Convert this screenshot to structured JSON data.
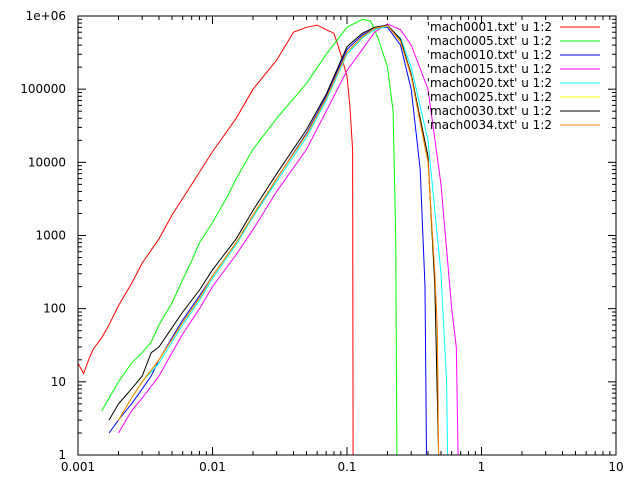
{
  "chart_data": {
    "type": "line",
    "title": "",
    "xlabel": "",
    "ylabel": "",
    "xscale": "log",
    "yscale": "log",
    "xlim": [
      0.001,
      10
    ],
    "ylim": [
      1,
      1000000
    ],
    "grid": false,
    "legend_position": "top-right",
    "x_ticks": [
      {
        "value": 0.001,
        "label": "0.001"
      },
      {
        "value": 0.01,
        "label": "0.01"
      },
      {
        "value": 0.1,
        "label": "0.1"
      },
      {
        "value": 1,
        "label": "1"
      },
      {
        "value": 10,
        "label": "10"
      }
    ],
    "y_ticks": [
      {
        "value": 1,
        "label": "1"
      },
      {
        "value": 10,
        "label": "10"
      },
      {
        "value": 100,
        "label": "100"
      },
      {
        "value": 1000,
        "label": "1000"
      },
      {
        "value": 10000,
        "label": "10000"
      },
      {
        "value": 100000,
        "label": "100000"
      },
      {
        "value": 1000000,
        "label": "1e+06"
      }
    ],
    "series": [
      {
        "name": "'mach0001.txt' u 1:2",
        "color": "#ff0000",
        "points": [
          [
            0.001,
            18
          ],
          [
            0.0011,
            13
          ],
          [
            0.0012,
            20
          ],
          [
            0.0013,
            28
          ],
          [
            0.0015,
            40
          ],
          [
            0.0017,
            60
          ],
          [
            0.002,
            110
          ],
          [
            0.0025,
            220
          ],
          [
            0.003,
            420
          ],
          [
            0.004,
            900
          ],
          [
            0.005,
            1900
          ],
          [
            0.007,
            5000
          ],
          [
            0.01,
            14000
          ],
          [
            0.015,
            40000
          ],
          [
            0.02,
            100000
          ],
          [
            0.03,
            250000
          ],
          [
            0.04,
            600000
          ],
          [
            0.05,
            700000
          ],
          [
            0.06,
            750000
          ],
          [
            0.07,
            650000
          ],
          [
            0.08,
            580000
          ],
          [
            0.09,
            300000
          ],
          [
            0.1,
            150000
          ],
          [
            0.105,
            60000
          ],
          [
            0.11,
            15000
          ],
          [
            0.111,
            1
          ]
        ]
      },
      {
        "name": "'mach0005.txt' u 1:2",
        "color": "#00ff00",
        "points": [
          [
            0.0015,
            4
          ],
          [
            0.002,
            10
          ],
          [
            0.0025,
            18
          ],
          [
            0.003,
            25
          ],
          [
            0.0035,
            35
          ],
          [
            0.004,
            60
          ],
          [
            0.005,
            120
          ],
          [
            0.006,
            250
          ],
          [
            0.007,
            450
          ],
          [
            0.008,
            800
          ],
          [
            0.01,
            1500
          ],
          [
            0.013,
            3500
          ],
          [
            0.015,
            6000
          ],
          [
            0.02,
            15000
          ],
          [
            0.03,
            40000
          ],
          [
            0.05,
            120000
          ],
          [
            0.07,
            300000
          ],
          [
            0.1,
            700000
          ],
          [
            0.13,
            900000
          ],
          [
            0.15,
            850000
          ],
          [
            0.17,
            500000
          ],
          [
            0.2,
            200000
          ],
          [
            0.22,
            50000
          ],
          [
            0.23,
            1000
          ],
          [
            0.235,
            1
          ]
        ]
      },
      {
        "name": "'mach0010.txt' u 1:2",
        "color": "#0000ff",
        "points": [
          [
            0.0017,
            2
          ],
          [
            0.002,
            3
          ],
          [
            0.0025,
            5
          ],
          [
            0.003,
            8
          ],
          [
            0.0035,
            12
          ],
          [
            0.004,
            20
          ],
          [
            0.005,
            40
          ],
          [
            0.006,
            70
          ],
          [
            0.008,
            150
          ],
          [
            0.01,
            280
          ],
          [
            0.015,
            800
          ],
          [
            0.02,
            1800
          ],
          [
            0.03,
            6000
          ],
          [
            0.05,
            25000
          ],
          [
            0.07,
            80000
          ],
          [
            0.1,
            350000
          ],
          [
            0.13,
            550000
          ],
          [
            0.16,
            680000
          ],
          [
            0.2,
            700000
          ],
          [
            0.25,
            400000
          ],
          [
            0.3,
            100000
          ],
          [
            0.35,
            8000
          ],
          [
            0.38,
            200
          ],
          [
            0.39,
            1
          ]
        ]
      },
      {
        "name": "'mach0015.txt' u 1:2",
        "color": "#ff00ff",
        "points": [
          [
            0.002,
            2
          ],
          [
            0.0025,
            4
          ],
          [
            0.003,
            6
          ],
          [
            0.004,
            12
          ],
          [
            0.005,
            25
          ],
          [
            0.006,
            45
          ],
          [
            0.008,
            100
          ],
          [
            0.01,
            200
          ],
          [
            0.015,
            550
          ],
          [
            0.02,
            1200
          ],
          [
            0.03,
            4000
          ],
          [
            0.05,
            15000
          ],
          [
            0.07,
            50000
          ],
          [
            0.1,
            180000
          ],
          [
            0.13,
            350000
          ],
          [
            0.16,
            600000
          ],
          [
            0.2,
            780000
          ],
          [
            0.25,
            650000
          ],
          [
            0.3,
            400000
          ],
          [
            0.4,
            100000
          ],
          [
            0.5,
            5000
          ],
          [
            0.6,
            100
          ],
          [
            0.65,
            30
          ],
          [
            0.67,
            1
          ]
        ]
      },
      {
        "name": "'mach0020.txt' u 1:2",
        "color": "#00ffff",
        "points": [
          [
            0.002,
            3
          ],
          [
            0.0025,
            6
          ],
          [
            0.003,
            10
          ],
          [
            0.004,
            18
          ],
          [
            0.005,
            35
          ],
          [
            0.006,
            60
          ],
          [
            0.008,
            130
          ],
          [
            0.01,
            260
          ],
          [
            0.015,
            750
          ],
          [
            0.02,
            1800
          ],
          [
            0.03,
            5500
          ],
          [
            0.05,
            22000
          ],
          [
            0.07,
            70000
          ],
          [
            0.1,
            300000
          ],
          [
            0.13,
            500000
          ],
          [
            0.16,
            650000
          ],
          [
            0.2,
            720000
          ],
          [
            0.25,
            500000
          ],
          [
            0.3,
            200000
          ],
          [
            0.4,
            20000
          ],
          [
            0.5,
            300
          ],
          [
            0.55,
            10
          ],
          [
            0.56,
            1
          ]
        ]
      },
      {
        "name": "'mach0025.txt' u 1:2",
        "color": "#ffff00",
        "points": [
          [
            0.002,
            3
          ],
          [
            0.0025,
            6
          ],
          [
            0.003,
            10
          ],
          [
            0.004,
            20
          ],
          [
            0.005,
            38
          ],
          [
            0.006,
            65
          ],
          [
            0.008,
            140
          ],
          [
            0.01,
            280
          ],
          [
            0.015,
            800
          ],
          [
            0.02,
            1900
          ],
          [
            0.03,
            6000
          ],
          [
            0.05,
            24000
          ],
          [
            0.07,
            75000
          ],
          [
            0.1,
            320000
          ],
          [
            0.13,
            520000
          ],
          [
            0.16,
            680000
          ],
          [
            0.2,
            740000
          ],
          [
            0.25,
            450000
          ],
          [
            0.3,
            150000
          ],
          [
            0.4,
            10000
          ],
          [
            0.45,
            200
          ],
          [
            0.48,
            1
          ]
        ]
      },
      {
        "name": "'mach0030.txt' u 1:2",
        "color": "#000000",
        "points": [
          [
            0.0017,
            3
          ],
          [
            0.002,
            5
          ],
          [
            0.0025,
            8
          ],
          [
            0.003,
            12
          ],
          [
            0.0035,
            25
          ],
          [
            0.004,
            30
          ],
          [
            0.005,
            55
          ],
          [
            0.006,
            90
          ],
          [
            0.008,
            180
          ],
          [
            0.01,
            340
          ],
          [
            0.015,
            900
          ],
          [
            0.02,
            2200
          ],
          [
            0.03,
            7000
          ],
          [
            0.05,
            28000
          ],
          [
            0.07,
            85000
          ],
          [
            0.1,
            380000
          ],
          [
            0.13,
            580000
          ],
          [
            0.16,
            700000
          ],
          [
            0.2,
            750000
          ],
          [
            0.25,
            480000
          ],
          [
            0.3,
            160000
          ],
          [
            0.4,
            12000
          ],
          [
            0.45,
            200
          ],
          [
            0.48,
            1
          ]
        ]
      },
      {
        "name": "'mach0034.txt' u 1:2",
        "color": "#ff8000",
        "points": [
          [
            0.002,
            3
          ],
          [
            0.0025,
            6
          ],
          [
            0.003,
            10
          ],
          [
            0.004,
            20
          ],
          [
            0.005,
            38
          ],
          [
            0.006,
            65
          ],
          [
            0.008,
            140
          ],
          [
            0.01,
            280
          ],
          [
            0.015,
            800
          ],
          [
            0.02,
            1900
          ],
          [
            0.03,
            6000
          ],
          [
            0.05,
            24000
          ],
          [
            0.07,
            75000
          ],
          [
            0.1,
            320000
          ],
          [
            0.13,
            520000
          ],
          [
            0.16,
            680000
          ],
          [
            0.2,
            740000
          ],
          [
            0.25,
            450000
          ],
          [
            0.3,
            150000
          ],
          [
            0.4,
            10000
          ],
          [
            0.45,
            300
          ],
          [
            0.47,
            50
          ],
          [
            0.48,
            1
          ]
        ]
      }
    ]
  }
}
